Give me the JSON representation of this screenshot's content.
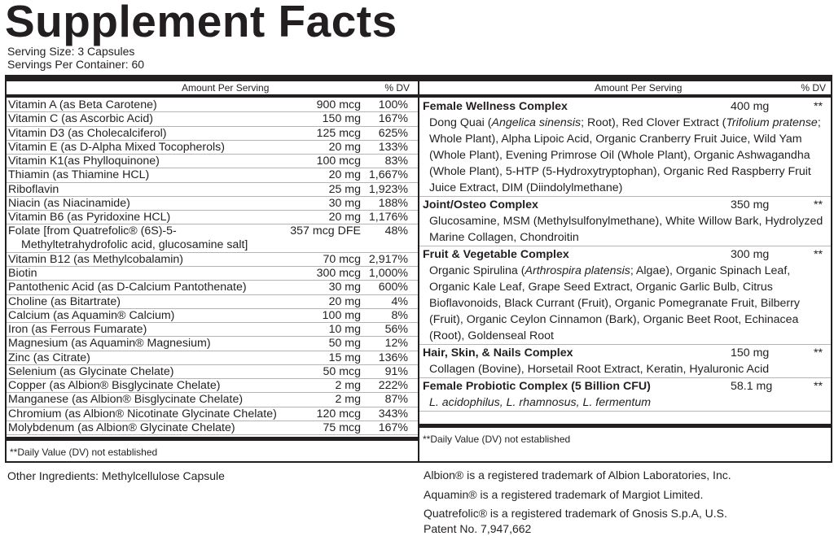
{
  "title": "Supplement Facts",
  "serving_size": "Serving Size: 3 Capsules",
  "servings_per_container": "Servings Per Container: 60",
  "header": {
    "amount": "Amount Per Serving",
    "dv": "% DV"
  },
  "left_rows": [
    {
      "name": "Vitamin A (as Beta Carotene)",
      "amount": "900 mcg",
      "dv": "100%"
    },
    {
      "name": "Vitamin C (as Ascorbic Acid)",
      "amount": "150 mg",
      "dv": "167%"
    },
    {
      "name": "Vitamin D3 (as Cholecalciferol)",
      "amount": "125 mcg",
      "dv": "625%"
    },
    {
      "name": "Vitamin E (as D-Alpha Mixed Tocopherols)",
      "amount": "20 mg",
      "dv": "133%"
    },
    {
      "name": "Vitamin K1(as Phylloquinone)",
      "amount": "100 mcg",
      "dv": "83%"
    },
    {
      "name": "Thiamin (as Thiamine HCL)",
      "amount": "20 mg",
      "dv": "1,667%"
    },
    {
      "name": "Riboflavin",
      "amount": "25 mg",
      "dv": "1,923%"
    },
    {
      "name": "Niacin (as Niacinamide)",
      "amount": "30 mg",
      "dv": "188%"
    },
    {
      "name": "Vitamin B6 (as Pyridoxine HCL)",
      "amount": "20 mg",
      "dv": "1,176%"
    },
    {
      "name": "Folate [from Quatrefolic® (6S)-5-",
      "name2": "Methyltetrahydrofolic acid, glucosamine salt]",
      "amount": "357 mcg DFE",
      "dv": "48%"
    },
    {
      "name": "Vitamin B12 (as Methylcobalamin)",
      "amount": "70 mcg",
      "dv": "2,917%"
    },
    {
      "name": "Biotin",
      "amount": "300 mcg",
      "dv": "1,000%"
    },
    {
      "name": "Pantothenic Acid (as D-Calcium Pantothenate)",
      "amount": "30 mg",
      "dv": "600%"
    },
    {
      "name": "Choline (as Bitartrate)",
      "amount": "20 mg",
      "dv": "4%"
    },
    {
      "name": "Calcium (as Aquamin® Calcium)",
      "amount": "100 mg",
      "dv": "8%"
    },
    {
      "name": "Iron (as Ferrous Fumarate)",
      "amount": "10 mg",
      "dv": "56%"
    },
    {
      "name": "Magnesium (as Aquamin® Magnesium)",
      "amount": "50 mg",
      "dv": "12%"
    },
    {
      "name": "Zinc (as Citrate)",
      "amount": "15 mg",
      "dv": "136%"
    },
    {
      "name": "Selenium (as Glycinate Chelate)",
      "amount": "50 mcg",
      "dv": "91%"
    },
    {
      "name": "Copper (as Albion® Bisglycinate Chelate)",
      "amount": "2 mg",
      "dv": "222%"
    },
    {
      "name": "Manganese (as Albion® Bisglycinate Chelate)",
      "amount": "2 mg",
      "dv": "87%"
    },
    {
      "name": "Chromium (as Albion® Nicotinate Glycinate Chelate)",
      "amount": "120 mcg",
      "dv": "343%"
    },
    {
      "name": "Molybdenum (as Albion® Glycinate Chelate)",
      "amount": "75 mcg",
      "dv": "167%"
    }
  ],
  "right_sections": [
    {
      "title": "Female Wellness Complex",
      "amount": "400 mg",
      "dv": "**",
      "desc": "Dong Quai (Angelica sinensis; Root), Red Clover Extract (Trifolium pratense; Whole Plant), Alpha Lipoic Acid, Organic Cranberry Fruit Juice, Wild Yam (Whole Plant), Evening Primrose Oil (Whole Plant), Organic Ashwagandha (Whole Plant), 5-HTP (5-Hydroxytryptophan), Organic Red Raspberry Fruit Juice Extract, DIM (Diindolylmethane)"
    },
    {
      "title": "Joint/Osteo Complex",
      "amount": "350 mg",
      "dv": "**",
      "desc": "Glucosamine, MSM (Methylsulfonylmethane), White Willow Bark, Hydrolyzed Marine Collagen, Chondroitin"
    },
    {
      "title": "Fruit & Vegetable Complex",
      "amount": "300 mg",
      "dv": "**",
      "desc": "Organic Spirulina (Arthrospira platensis; Algae), Organic Spinach Leaf, Organic Kale Leaf, Grape Seed Extract, Organic Garlic Bulb, Citrus Bioflavonoids, Black Currant (Fruit), Organic Pomegranate Fruit, Bilberry (Fruit), Organic Ceylon Cinnamon (Bark), Organic Beet Root, Echinacea (Root), Goldenseal Root"
    },
    {
      "title": "Hair, Skin, & Nails Complex",
      "amount": "150 mg",
      "dv": "**",
      "desc": "Collagen (Bovine), Horsetail Root Extract, Keratin, Hyaluronic Acid"
    },
    {
      "title": "Female Probiotic Complex (5 Billion CFU)",
      "amount": "58.1 mg",
      "dv": "**",
      "desc": "L. acidophilus, L. rhamnosus, L. fermentum"
    }
  ],
  "footnote": "**Daily Value (DV) not established",
  "other_ingredients": "Other Ingredients: Methylcellulose Capsule",
  "trademarks": [
    "Albion® is a registered trademark of Albion Laboratories, Inc.",
    "Aquamin® is a registered trademark of Margiot Limited.",
    "Quatrefolic® is a registered trademark of Gnosis S.p.A, U.S.",
    "Patent No. 7,947,662"
  ]
}
